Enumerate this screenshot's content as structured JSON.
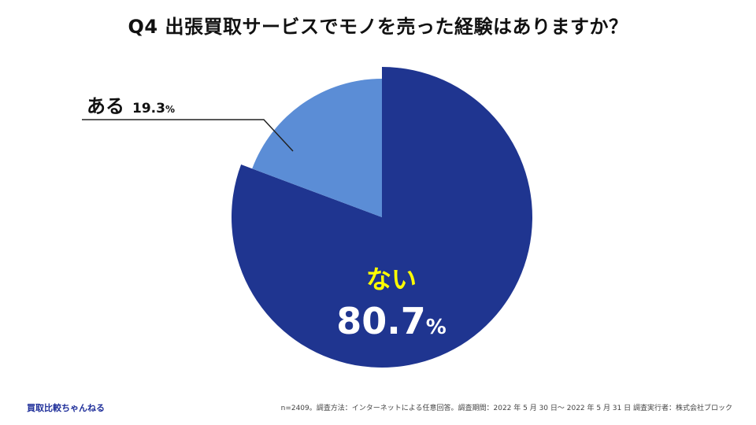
{
  "title": "Q4 出張買取サービスでモノを売った経験はありますか？",
  "chart_data": {
    "type": "pie",
    "title": "Q4 出張買取サービスでモノを売った経験はありますか？",
    "start_angle_deg": 0,
    "direction": "clockwise",
    "slices": [
      {
        "label": "ない",
        "value": 80.7,
        "display": "80.7",
        "unit": "%",
        "color": "#1f3590",
        "label_color": "#ffff00"
      },
      {
        "label": "ある",
        "value": 19.3,
        "display": "19.3",
        "unit": "%",
        "color": "#5b8dd6"
      }
    ]
  },
  "footer": {
    "brand": "買取比較ちゃんねる",
    "note": "n=2409。調査方法：インターネットによる任意回答。調査期間：2022 年 5 月 30 日～ 2022 年 5 月 31 日 調査実行者：株式会社ブロック"
  },
  "colors": {
    "brand": "#1f2f9a",
    "background": "#ffffff"
  }
}
